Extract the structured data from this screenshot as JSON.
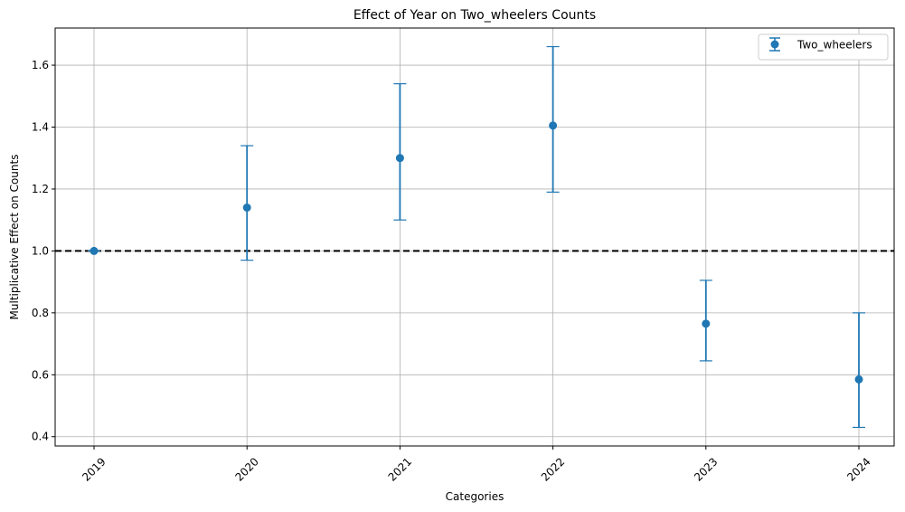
{
  "chart_data": {
    "type": "scatter",
    "title": "Effect of Year on Two_wheelers Counts",
    "xlabel": "Categories",
    "ylabel": "Multiplicative Effect on Counts",
    "categories": [
      "2019",
      "2020",
      "2021",
      "2022",
      "2023",
      "2024"
    ],
    "series": [
      {
        "name": "Two_wheelers",
        "values": [
          1.0,
          1.14,
          1.3,
          1.405,
          0.765,
          0.585
        ],
        "lower": [
          1.0,
          0.97,
          1.1,
          1.19,
          0.645,
          0.43
        ],
        "upper": [
          1.0,
          1.34,
          1.54,
          1.66,
          0.905,
          0.8
        ],
        "color": "#1f77b4"
      }
    ],
    "reference_line": {
      "y": 1.0,
      "style": "dashed",
      "color": "#000000"
    },
    "ylim": [
      0.37,
      1.72
    ],
    "yticks": [
      "0.4",
      "0.6",
      "0.8",
      "1.0",
      "1.2",
      "1.4",
      "1.6"
    ],
    "grid": true,
    "legend_position": "top-right",
    "xtick_rotation": -45
  }
}
